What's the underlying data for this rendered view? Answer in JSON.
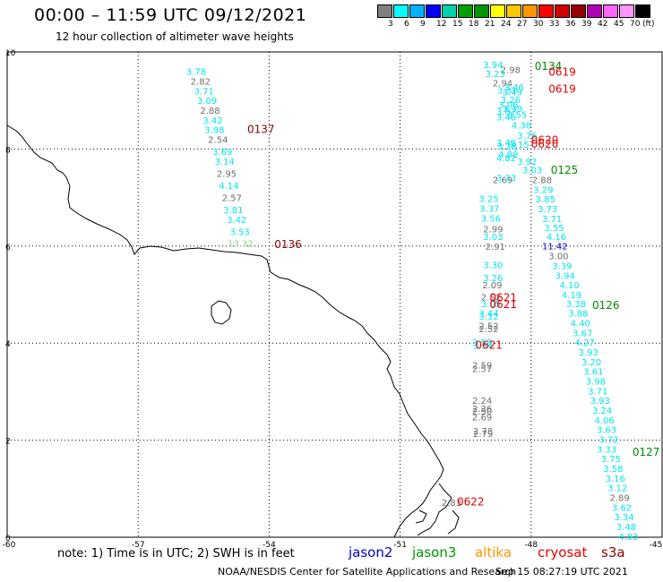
{
  "header": {
    "title": "00:00 – 11:59 UTC 09/12/2021",
    "subtitle": "12 hour collection of altimeter wave heights"
  },
  "legend": {
    "swatches": [
      "#7f7f7f",
      "#00ffff",
      "#00b2ff",
      "#0000ff",
      "#00d2aa",
      "#00a000",
      "#009600",
      "#ffff00",
      "#ffc800",
      "#ff9600",
      "#ff0000",
      "#d20000",
      "#960000",
      "#b400b4",
      "#ff64ff",
      "#ff96ff",
      "#000000"
    ],
    "levels": [
      "3",
      "6",
      "9",
      "12",
      "15",
      "18",
      "21",
      "24",
      "27",
      "30",
      "33",
      "36",
      "39",
      "42",
      "45",
      "70",
      "(ft)"
    ]
  },
  "map": {
    "lon_range": [
      -60,
      -45
    ],
    "lat_range": [
      0,
      10
    ],
    "x_ticks": [
      "-60",
      "-57",
      "-54",
      "-51",
      "-48",
      "-45"
    ],
    "y_ticks": [
      "10",
      "8",
      "6",
      "4",
      "2",
      "0"
    ],
    "colors": {
      "cyan": "#00e5ee",
      "gray": "#6e6e6e",
      "green": "#008c00",
      "red": "#e60000",
      "darkred": "#8b0000",
      "blue": "#0000cc",
      "lime": "#8fd68f"
    },
    "pass_labels": [
      {
        "text": "0134",
        "lon": -47.92,
        "lat": 9.72,
        "color": "green"
      },
      {
        "text": "0619",
        "lon": -47.6,
        "lat": 9.6,
        "color": "red"
      },
      {
        "text": "0619",
        "lon": -47.6,
        "lat": 9.25,
        "color": "red"
      },
      {
        "text": "0137",
        "lon": -54.5,
        "lat": 8.42,
        "color": "darkred"
      },
      {
        "text": "0620",
        "lon": -48.0,
        "lat": 8.2,
        "color": "red"
      },
      {
        "text": "0620",
        "lon": -48.0,
        "lat": 8.12,
        "color": "red"
      },
      {
        "text": "0125",
        "lon": -47.55,
        "lat": 7.58,
        "color": "green"
      },
      {
        "text": "0136",
        "lon": -53.88,
        "lat": 6.05,
        "color": "darkred"
      },
      {
        "text": "0621",
        "lon": -48.95,
        "lat": 4.95,
        "color": "red"
      },
      {
        "text": "0621",
        "lon": -48.95,
        "lat": 4.82,
        "color": "red"
      },
      {
        "text": "0126",
        "lon": -46.6,
        "lat": 4.8,
        "color": "green"
      },
      {
        "text": "0621",
        "lon": -49.28,
        "lat": 3.98,
        "color": "red"
      },
      {
        "text": "0127",
        "lon": -45.68,
        "lat": 1.77,
        "color": "green"
      },
      {
        "text": "0622",
        "lon": -49.7,
        "lat": 0.75,
        "color": "red"
      }
    ],
    "obs": [
      {
        "v": "3.78",
        "lon": -55.9,
        "lat": 9.6,
        "c": "cyan"
      },
      {
        "v": "2.82",
        "lon": -55.8,
        "lat": 9.4,
        "c": "gray"
      },
      {
        "v": "3.71",
        "lon": -55.72,
        "lat": 9.2,
        "c": "cyan"
      },
      {
        "v": "3.09",
        "lon": -55.65,
        "lat": 9.0,
        "c": "cyan"
      },
      {
        "v": "2.88",
        "lon": -55.58,
        "lat": 8.8,
        "c": "gray"
      },
      {
        "v": "3.42",
        "lon": -55.52,
        "lat": 8.6,
        "c": "cyan"
      },
      {
        "v": "3.98",
        "lon": -55.48,
        "lat": 8.4,
        "c": "cyan"
      },
      {
        "v": "2.54",
        "lon": -55.4,
        "lat": 8.2,
        "c": "gray"
      },
      {
        "v": "3.69",
        "lon": -55.3,
        "lat": 7.95,
        "c": "cyan"
      },
      {
        "v": "3.14",
        "lon": -55.25,
        "lat": 7.75,
        "c": "cyan"
      },
      {
        "v": "2.95",
        "lon": -55.2,
        "lat": 7.5,
        "c": "gray"
      },
      {
        "v": "4.14",
        "lon": -55.15,
        "lat": 7.25,
        "c": "cyan"
      },
      {
        "v": "2.57",
        "lon": -55.08,
        "lat": 7.0,
        "c": "gray"
      },
      {
        "v": "3.81",
        "lon": -55.05,
        "lat": 6.75,
        "c": "cyan"
      },
      {
        "v": "3.42",
        "lon": -54.97,
        "lat": 6.55,
        "c": "cyan"
      },
      {
        "v": "3.53",
        "lon": -54.9,
        "lat": 6.3,
        "c": "cyan"
      },
      {
        "v": "13.32",
        "lon": -54.95,
        "lat": 6.06,
        "c": "lime"
      },
      {
        "v": "3.94",
        "lon": -49.1,
        "lat": 9.74,
        "c": "cyan"
      },
      {
        "v": "2.98",
        "lon": -48.7,
        "lat": 9.64,
        "c": "gray"
      },
      {
        "v": "3.23",
        "lon": -49.05,
        "lat": 9.56,
        "c": "cyan"
      },
      {
        "v": "2.94",
        "lon": -48.88,
        "lat": 9.36,
        "c": "gray"
      },
      {
        "v": "3.46",
        "lon": -48.62,
        "lat": 9.28,
        "c": "cyan"
      },
      {
        "v": "3.31",
        "lon": -48.78,
        "lat": 9.22,
        "c": "cyan"
      },
      {
        "v": "3.49",
        "lon": -48.66,
        "lat": 9.18,
        "c": "cyan"
      },
      {
        "v": "3.26",
        "lon": -48.7,
        "lat": 9.02,
        "c": "cyan"
      },
      {
        "v": "3.06",
        "lon": -48.75,
        "lat": 8.92,
        "c": "cyan"
      },
      {
        "v": "3.39",
        "lon": -48.65,
        "lat": 8.84,
        "c": "cyan"
      },
      {
        "v": "3.87",
        "lon": -48.8,
        "lat": 8.78,
        "c": "cyan"
      },
      {
        "v": "3.55",
        "lon": -48.55,
        "lat": 8.72,
        "c": "cyan"
      },
      {
        "v": "3.46",
        "lon": -48.8,
        "lat": 8.66,
        "c": "cyan"
      },
      {
        "v": "4.38",
        "lon": -48.45,
        "lat": 8.5,
        "c": "cyan"
      },
      {
        "v": "3.76",
        "lon": -48.32,
        "lat": 8.28,
        "c": "cyan"
      },
      {
        "v": "3.40",
        "lon": -48.8,
        "lat": 8.14,
        "c": "cyan"
      },
      {
        "v": "3.28",
        "lon": -48.78,
        "lat": 8.06,
        "c": "cyan"
      },
      {
        "v": "3.15",
        "lon": -48.5,
        "lat": 8.1,
        "c": "cyan"
      },
      {
        "v": "3.92",
        "lon": -48.32,
        "lat": 7.75,
        "c": "cyan"
      },
      {
        "v": "4.82",
        "lon": -48.8,
        "lat": 7.82,
        "c": "cyan"
      },
      {
        "v": "4.88",
        "lon": -48.75,
        "lat": 7.9,
        "c": "cyan"
      },
      {
        "v": "3.03",
        "lon": -48.2,
        "lat": 7.57,
        "c": "cyan"
      },
      {
        "v": "2.69",
        "lon": -48.88,
        "lat": 7.37,
        "c": "gray"
      },
      {
        "v": "3.33",
        "lon": -48.8,
        "lat": 7.42,
        "c": "cyan"
      },
      {
        "v": "2.88",
        "lon": -47.98,
        "lat": 7.37,
        "c": "gray"
      },
      {
        "v": "3.29",
        "lon": -47.95,
        "lat": 7.17,
        "c": "cyan"
      },
      {
        "v": "3.25",
        "lon": -49.2,
        "lat": 6.98,
        "c": "cyan"
      },
      {
        "v": "3.85",
        "lon": -47.9,
        "lat": 6.97,
        "c": "cyan"
      },
      {
        "v": "3.37",
        "lon": -49.18,
        "lat": 6.78,
        "c": "cyan"
      },
      {
        "v": "3.73",
        "lon": -47.85,
        "lat": 6.77,
        "c": "cyan"
      },
      {
        "v": "3.56",
        "lon": -49.15,
        "lat": 6.58,
        "c": "cyan"
      },
      {
        "v": "3.71",
        "lon": -47.75,
        "lat": 6.57,
        "c": "cyan"
      },
      {
        "v": "2.99",
        "lon": -49.1,
        "lat": 6.36,
        "c": "gray"
      },
      {
        "v": "3.55",
        "lon": -47.7,
        "lat": 6.38,
        "c": "cyan"
      },
      {
        "v": "3.03",
        "lon": -49.1,
        "lat": 6.2,
        "c": "cyan"
      },
      {
        "v": "4.16",
        "lon": -47.65,
        "lat": 6.2,
        "c": "cyan"
      },
      {
        "v": "2.91",
        "lon": -49.05,
        "lat": 6.0,
        "c": "gray"
      },
      {
        "v": "11.42",
        "lon": -47.75,
        "lat": 6.01,
        "c": "blue"
      },
      {
        "v": "3.00",
        "lon": -47.6,
        "lat": 5.8,
        "c": "gray"
      },
      {
        "v": "3.30",
        "lon": -49.1,
        "lat": 5.62,
        "c": "cyan"
      },
      {
        "v": "3.39",
        "lon": -47.52,
        "lat": 5.6,
        "c": "cyan"
      },
      {
        "v": "3.26",
        "lon": -49.1,
        "lat": 5.35,
        "c": "cyan"
      },
      {
        "v": "3.94",
        "lon": -47.45,
        "lat": 5.4,
        "c": "cyan"
      },
      {
        "v": "2.09",
        "lon": -49.12,
        "lat": 5.2,
        "c": "gray"
      },
      {
        "v": "4.10",
        "lon": -47.35,
        "lat": 5.2,
        "c": "cyan"
      },
      {
        "v": "2.52",
        "lon": -49.15,
        "lat": 4.95,
        "c": "gray"
      },
      {
        "v": "4.19",
        "lon": -47.3,
        "lat": 5.0,
        "c": "cyan"
      },
      {
        "v": "3.05",
        "lon": -49.15,
        "lat": 4.82,
        "c": "cyan"
      },
      {
        "v": "3.38",
        "lon": -47.2,
        "lat": 4.82,
        "c": "cyan"
      },
      {
        "v": "3.44",
        "lon": -49.2,
        "lat": 4.62,
        "c": "cyan"
      },
      {
        "v": "3.12",
        "lon": -49.2,
        "lat": 4.56,
        "c": "cyan"
      },
      {
        "v": "3.88",
        "lon": -47.15,
        "lat": 4.62,
        "c": "cyan"
      },
      {
        "v": "2.52",
        "lon": -49.2,
        "lat": 4.36,
        "c": "gray"
      },
      {
        "v": "2.52",
        "lon": -49.2,
        "lat": 4.3,
        "c": "gray"
      },
      {
        "v": "4.40",
        "lon": -47.1,
        "lat": 4.42,
        "c": "cyan"
      },
      {
        "v": "3.67",
        "lon": -47.05,
        "lat": 4.22,
        "c": "cyan"
      },
      {
        "v": "3.58",
        "lon": -49.35,
        "lat": 4.02,
        "c": "cyan"
      },
      {
        "v": "3.34",
        "lon": -49.33,
        "lat": 3.96,
        "c": "cyan"
      },
      {
        "v": "4.27",
        "lon": -47.0,
        "lat": 4.02,
        "c": "cyan"
      },
      {
        "v": "3.93",
        "lon": -46.92,
        "lat": 3.82,
        "c": "cyan"
      },
      {
        "v": "3.20",
        "lon": -46.85,
        "lat": 3.62,
        "c": "cyan"
      },
      {
        "v": "2.59",
        "lon": -49.35,
        "lat": 3.55,
        "c": "gray"
      },
      {
        "v": "2.57",
        "lon": -49.35,
        "lat": 3.48,
        "c": "gray"
      },
      {
        "v": "3.61",
        "lon": -46.8,
        "lat": 3.42,
        "c": "cyan"
      },
      {
        "v": "3.98",
        "lon": -46.75,
        "lat": 3.22,
        "c": "cyan"
      },
      {
        "v": "3.71",
        "lon": -46.7,
        "lat": 3.02,
        "c": "cyan"
      },
      {
        "v": "2.24",
        "lon": -49.35,
        "lat": 2.82,
        "c": "gray"
      },
      {
        "v": "3.93",
        "lon": -46.65,
        "lat": 2.82,
        "c": "cyan"
      },
      {
        "v": "2.36",
        "lon": -49.35,
        "lat": 2.66,
        "c": "gray"
      },
      {
        "v": "3.24",
        "lon": -46.6,
        "lat": 2.62,
        "c": "cyan"
      },
      {
        "v": "2.50",
        "lon": -49.35,
        "lat": 2.6,
        "c": "gray"
      },
      {
        "v": "2.69",
        "lon": -49.35,
        "lat": 2.48,
        "c": "gray"
      },
      {
        "v": "4.06",
        "lon": -46.55,
        "lat": 2.42,
        "c": "cyan"
      },
      {
        "v": "3.63",
        "lon": -46.5,
        "lat": 2.22,
        "c": "cyan"
      },
      {
        "v": "2.78",
        "lon": -49.33,
        "lat": 2.2,
        "c": "gray"
      },
      {
        "v": "2.79",
        "lon": -49.33,
        "lat": 2.14,
        "c": "gray"
      },
      {
        "v": "3.72",
        "lon": -46.45,
        "lat": 2.02,
        "c": "cyan"
      },
      {
        "v": "3.33",
        "lon": -46.5,
        "lat": 1.82,
        "c": "cyan"
      },
      {
        "v": "3.75",
        "lon": -46.4,
        "lat": 1.62,
        "c": "cyan"
      },
      {
        "v": "3.58",
        "lon": -46.35,
        "lat": 1.42,
        "c": "cyan"
      },
      {
        "v": "3.16",
        "lon": -46.3,
        "lat": 1.22,
        "c": "cyan"
      },
      {
        "v": "3.12",
        "lon": -46.25,
        "lat": 1.02,
        "c": "cyan"
      },
      {
        "v": "2.89",
        "lon": -46.2,
        "lat": 0.82,
        "c": "gray"
      },
      {
        "v": "3.62",
        "lon": -46.15,
        "lat": 0.62,
        "c": "cyan"
      },
      {
        "v": "3.34",
        "lon": -46.1,
        "lat": 0.42,
        "c": "cyan"
      },
      {
        "v": "3.48",
        "lon": -46.05,
        "lat": 0.22,
        "c": "cyan"
      },
      {
        "v": "4.83",
        "lon": -46.0,
        "lat": 0.02,
        "c": "cyan"
      },
      {
        "v": "2.83",
        "lon": -50.05,
        "lat": 0.72,
        "c": "gray"
      }
    ]
  },
  "footer": {
    "note": "note:  1) Time is in UTC;  2) SWH is in feet",
    "satellites": [
      {
        "name": "jason2",
        "color": "#0000cc",
        "left": 389
      },
      {
        "name": "jason3",
        "color": "#009600",
        "left": 460
      },
      {
        "name": "altika",
        "color": "#ff9600",
        "left": 530
      },
      {
        "name": "cryosat",
        "color": "#e60000",
        "left": 600
      },
      {
        "name": "s3a",
        "color": "#8b0000",
        "left": 671
      }
    ],
    "credit": "NOAA/NESDIS Center for Satellite Applications and Research",
    "timestamp": "Sep 15 08:27:19 UTC 2021"
  }
}
